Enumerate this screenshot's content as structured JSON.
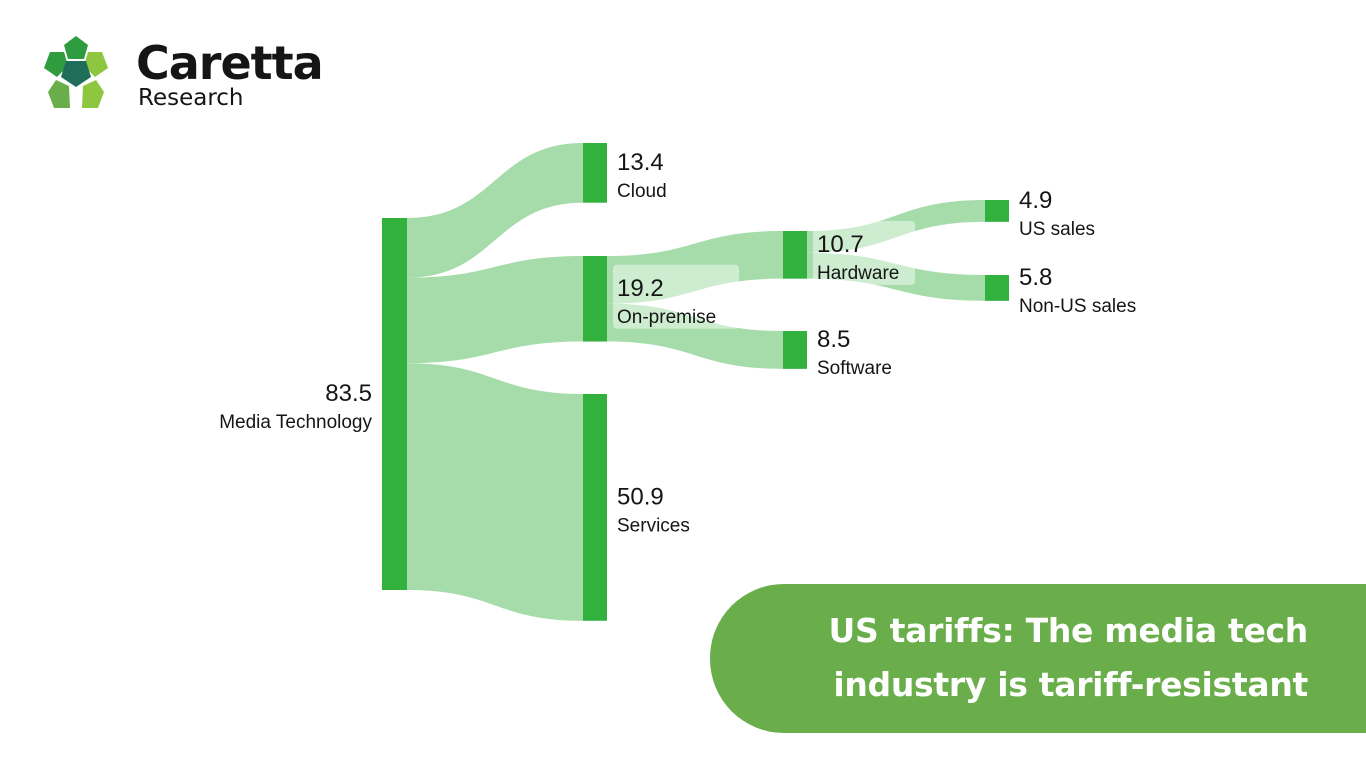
{
  "brand": {
    "name": "Caretta",
    "subtitle": "Research",
    "colors": [
      "#2e9c3f",
      "#1f6e5a",
      "#8dc63f",
      "#6aad4b"
    ]
  },
  "banner": {
    "line1": "US tariffs: The media tech",
    "line2": "industry is tariff-resistant",
    "color": "#6aad4b"
  },
  "chart_data": {
    "type": "sankey",
    "title": "",
    "node_color": "#33b13f",
    "link_color": "#a6dcaa",
    "nodes": [
      {
        "id": "media",
        "label": "Media Technology",
        "value": 83.5
      },
      {
        "id": "cloud",
        "label": "Cloud",
        "value": 13.4
      },
      {
        "id": "onprem",
        "label": "On-premise",
        "value": 19.2
      },
      {
        "id": "services",
        "label": "Services",
        "value": 50.9
      },
      {
        "id": "hardware",
        "label": "Hardware",
        "value": 10.7
      },
      {
        "id": "software",
        "label": "Software",
        "value": 8.5
      },
      {
        "id": "us",
        "label": "US sales",
        "value": 4.9
      },
      {
        "id": "nonus",
        "label": "Non-US sales",
        "value": 5.8
      }
    ],
    "links": [
      {
        "source": "media",
        "target": "cloud",
        "value": 13.4
      },
      {
        "source": "media",
        "target": "onprem",
        "value": 19.2
      },
      {
        "source": "media",
        "target": "services",
        "value": 50.9
      },
      {
        "source": "onprem",
        "target": "hardware",
        "value": 10.7
      },
      {
        "source": "onprem",
        "target": "software",
        "value": 8.5
      },
      {
        "source": "hardware",
        "target": "us",
        "value": 4.9
      },
      {
        "source": "hardware",
        "target": "nonus",
        "value": 5.8
      }
    ]
  }
}
